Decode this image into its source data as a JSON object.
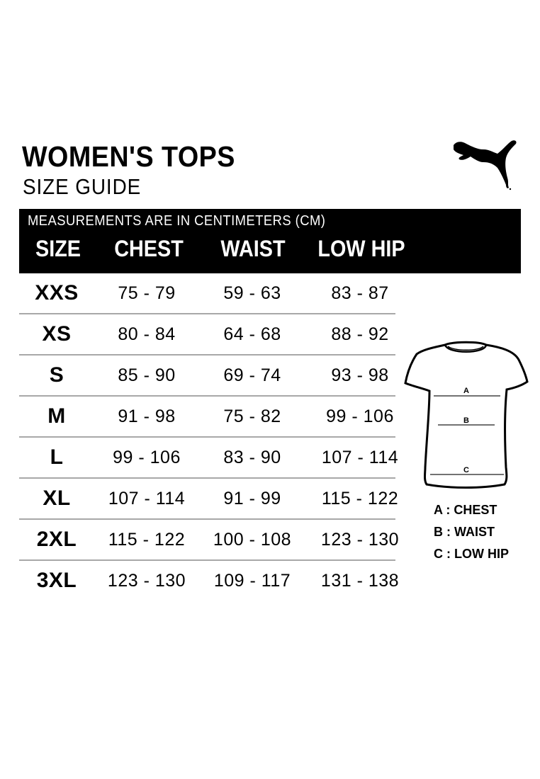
{
  "header": {
    "title": "WOMEN'S TOPS",
    "subtitle": "SIZE GUIDE",
    "logo": "puma-cat-logo"
  },
  "table": {
    "units_note": "MEASUREMENTS ARE IN CENTIMETERS (CM)",
    "columns": [
      "SIZE",
      "CHEST",
      "WAIST",
      "LOW HIP"
    ],
    "rows": [
      [
        "XXS",
        "75 - 79",
        "59 - 63",
        "83 - 87"
      ],
      [
        "XS",
        "80 - 84",
        "64 - 68",
        "88 - 92"
      ],
      [
        "S",
        "85 - 90",
        "69 - 74",
        "93 - 98"
      ],
      [
        "M",
        "91 - 98",
        "75 - 82",
        "99 - 106"
      ],
      [
        "L",
        "99 - 106",
        "83 - 90",
        "107 - 114"
      ],
      [
        "XL",
        "107 - 114",
        "91 - 99",
        "115 - 122"
      ],
      [
        "2XL",
        "115 - 122",
        "100 - 108",
        "123 - 130"
      ],
      [
        "3XL",
        "123 - 130",
        "109 - 117",
        "131 - 138"
      ]
    ]
  },
  "diagram": {
    "markers": [
      "A",
      "B",
      "C"
    ],
    "legend": [
      {
        "key": "A",
        "sep": ":",
        "label": "CHEST"
      },
      {
        "key": "B",
        "sep": ":",
        "label": "WAIST"
      },
      {
        "key": "C",
        "sep": ":",
        "label": "LOW HIP"
      }
    ]
  },
  "colors": {
    "band": "#000000",
    "row_divider": "#a8a8a8"
  }
}
